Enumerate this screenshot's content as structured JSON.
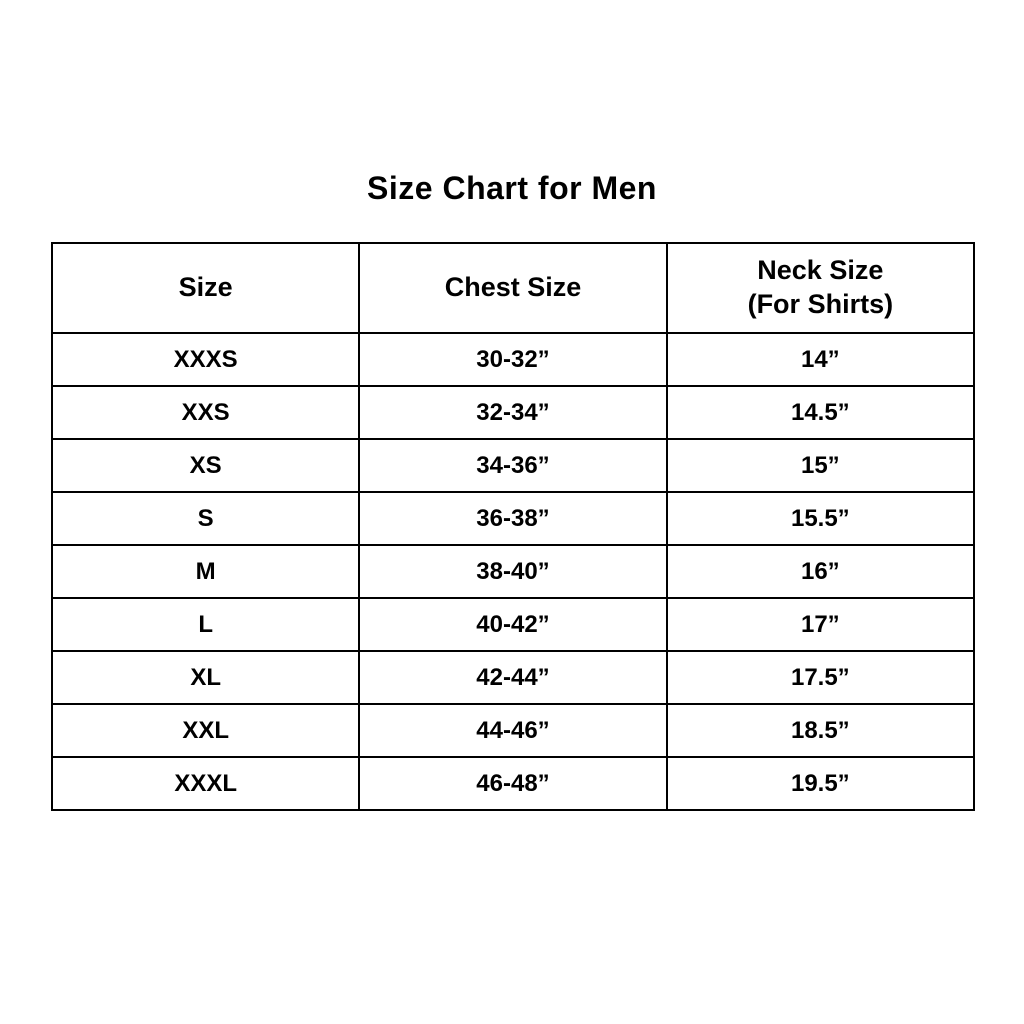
{
  "title": "Size Chart for Men",
  "table": {
    "columns": [
      {
        "label": "Size",
        "sublabel": ""
      },
      {
        "label": "Chest Size",
        "sublabel": ""
      },
      {
        "label": "Neck Size",
        "sublabel": "(For Shirts)"
      }
    ],
    "rows": [
      {
        "size": "XXXS",
        "chest": "30-32”",
        "neck": "14”"
      },
      {
        "size": "XXS",
        "chest": "32-34”",
        "neck": "14.5”"
      },
      {
        "size": "XS",
        "chest": "34-36”",
        "neck": "15”"
      },
      {
        "size": "S",
        "chest": "36-38”",
        "neck": "15.5”"
      },
      {
        "size": "M",
        "chest": "38-40”",
        "neck": "16”"
      },
      {
        "size": "L",
        "chest": "40-42”",
        "neck": "17”"
      },
      {
        "size": "XL",
        "chest": "42-44”",
        "neck": "17.5”"
      },
      {
        "size": "XXL",
        "chest": "44-46”",
        "neck": "18.5”"
      },
      {
        "size": "XXXL",
        "chest": "46-48”",
        "neck": "19.5”"
      }
    ]
  },
  "colors": {
    "background": "#ffffff",
    "text": "#000000",
    "border": "#000000"
  }
}
